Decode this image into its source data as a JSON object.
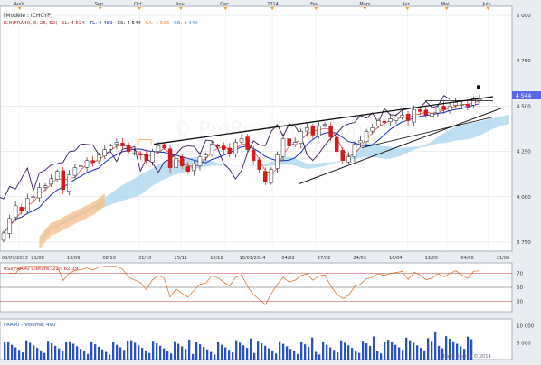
{
  "chart_data": {
    "type": "candlestick",
    "instrument": "FRA40",
    "timeline": {
      "months": [
        "Août",
        "Sep",
        "Oct",
        "Nov",
        "Dec",
        "2014",
        "Fev",
        "Mars",
        "Avr",
        "Mai",
        "Juin"
      ],
      "dates": [
        "03/07/2013",
        "21/08",
        "13/09",
        "08/10",
        "31/10",
        "25/11",
        "18/12",
        "10/01/2014",
        "04/02",
        "27/02",
        "24/03",
        "16/04",
        "12/05",
        "04/06",
        "21/06"
      ]
    },
    "price": {
      "legend_model": "[Modèle : ICHCYP]",
      "legend_ichimoku": "ICH(FRA40, 9, 26, 52)",
      "legend_sl": "SL: 4 524",
      "legend_tl": "TL: 4 489",
      "legend_cs": "CS: 4 544",
      "legend_sa": "SA: 4 506",
      "legend_sb": "SB: 4 449",
      "yticks": [
        "5 000",
        "4 750",
        "4 500",
        "4 250",
        "4 000",
        "3 750"
      ],
      "ytick_values": [
        5000,
        4750,
        4500,
        4250,
        4000,
        3750
      ],
      "last_label": "4 544",
      "last_value": 4544,
      "ylim": [
        3700,
        5050
      ],
      "close_series": [
        3800,
        3880,
        3950,
        3920,
        3990,
        4000,
        4050,
        4060,
        4100,
        4140,
        4040,
        4120,
        4160,
        4170,
        4200,
        4190,
        4230,
        4260,
        4280,
        4300,
        4280,
        4250,
        4240,
        4230,
        4200,
        4250,
        4280,
        4270,
        4160,
        4210,
        4170,
        4140,
        4180,
        4220,
        4230,
        4290,
        4280,
        4260,
        4240,
        4300,
        4320,
        4260,
        4200,
        4150,
        4080,
        4150,
        4230,
        4320,
        4280,
        4300,
        4360,
        4380,
        4340,
        4390,
        4400,
        4330,
        4250,
        4200,
        4220,
        4290,
        4310,
        4360,
        4380,
        4420,
        4410,
        4430,
        4440,
        4450,
        4420,
        4480,
        4470,
        4450,
        4460,
        4490,
        4480,
        4500,
        4520,
        4510,
        4500,
        4540,
        4544
      ]
    },
    "rsi": {
      "label": "RSI(FRA40 Clôture, 21): 62,39",
      "yticks": [
        "70",
        "50",
        "30"
      ],
      "ytick_values": [
        70,
        50,
        30
      ],
      "ylim": [
        15,
        85
      ]
    },
    "volume": {
      "label": "FRA40 - Volume: 490",
      "yticks": [
        "10 000",
        "5 000"
      ],
      "ytick_values": [
        10000,
        5000
      ],
      "ylim": [
        0,
        12000
      ]
    },
    "watermark": "© ProRealTime.com",
    "copyright": "Ratio Bourse © 2014"
  }
}
